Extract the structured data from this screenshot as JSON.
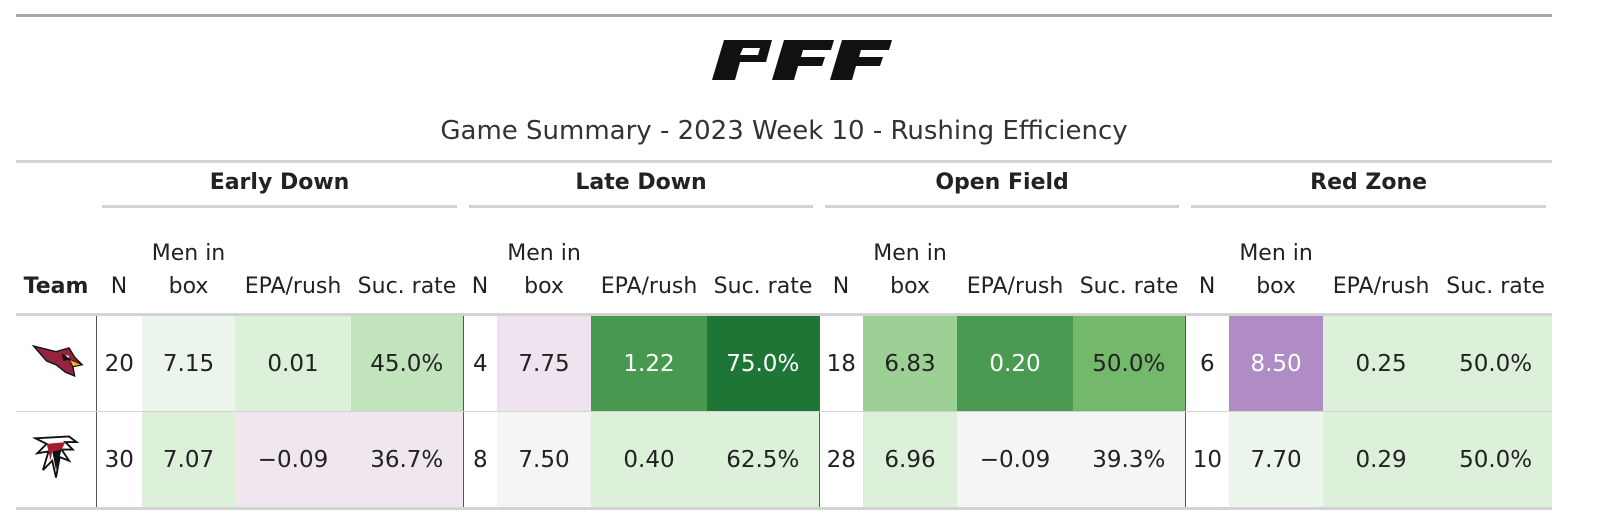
{
  "header": {
    "logo_text": "PFF",
    "title": "Game Summary - 2023 Week 10 - Rushing Efficiency"
  },
  "table": {
    "team_header": "Team",
    "groups": [
      "Early Down",
      "Late Down",
      "Open Field",
      "Red Zone"
    ],
    "columns": [
      "N",
      "Men in box",
      "EPA/rush",
      "Suc. rate"
    ],
    "rows": [
      {
        "team": "Arizona Cardinals",
        "logo_icon": "cardinals-logo-icon",
        "cells": [
          {
            "value": "20",
            "bg": "#ffffff",
            "light": false
          },
          {
            "value": "7.15",
            "bg": "#ecf5eb",
            "light": false
          },
          {
            "value": "0.01",
            "bg": "#ddf0da",
            "light": false
          },
          {
            "value": "45.0%",
            "bg": "#c1e4bc",
            "light": false
          },
          {
            "value": "4",
            "bg": "#ffffff",
            "light": false
          },
          {
            "value": "7.75",
            "bg": "#efe3ef",
            "light": false
          },
          {
            "value": "1.22",
            "bg": "#48994f",
            "light": true
          },
          {
            "value": "75.0%",
            "bg": "#1e7636",
            "light": true
          },
          {
            "value": "18",
            "bg": "#ffffff",
            "light": false
          },
          {
            "value": "6.83",
            "bg": "#9dd094",
            "light": false
          },
          {
            "value": "0.20",
            "bg": "#4b9a52",
            "light": true
          },
          {
            "value": "50.0%",
            "bg": "#74b86c",
            "light": false
          },
          {
            "value": "6",
            "bg": "#ffffff",
            "light": false
          },
          {
            "value": "8.50",
            "bg": "#af8cc4",
            "light": true
          },
          {
            "value": "0.25",
            "bg": "#ddf0da",
            "light": false
          },
          {
            "value": "50.0%",
            "bg": "#ddf0da",
            "light": false
          }
        ]
      },
      {
        "team": "Atlanta Falcons",
        "logo_icon": "falcons-logo-icon",
        "cells": [
          {
            "value": "30",
            "bg": "#ffffff",
            "light": false
          },
          {
            "value": "7.07",
            "bg": "#ddf0da",
            "light": false
          },
          {
            "value": "−0.09",
            "bg": "#efe6ef",
            "light": false
          },
          {
            "value": "36.7%",
            "bg": "#efe6ef",
            "light": false
          },
          {
            "value": "8",
            "bg": "#ffffff",
            "light": false
          },
          {
            "value": "7.50",
            "bg": "#f5f5f5",
            "light": false
          },
          {
            "value": "0.40",
            "bg": "#ddf0da",
            "light": false
          },
          {
            "value": "62.5%",
            "bg": "#ddf0da",
            "light": false
          },
          {
            "value": "28",
            "bg": "#ffffff",
            "light": false
          },
          {
            "value": "6.96",
            "bg": "#ddf0da",
            "light": false
          },
          {
            "value": "−0.09",
            "bg": "#f5f5f5",
            "light": false
          },
          {
            "value": "39.3%",
            "bg": "#f5f5f5",
            "light": false
          },
          {
            "value": "10",
            "bg": "#ffffff",
            "light": false
          },
          {
            "value": "7.70",
            "bg": "#ecf5eb",
            "light": false
          },
          {
            "value": "0.29",
            "bg": "#ddf0da",
            "light": false
          },
          {
            "value": "50.0%",
            "bg": "#ddf0da",
            "light": false
          }
        ]
      }
    ]
  }
}
